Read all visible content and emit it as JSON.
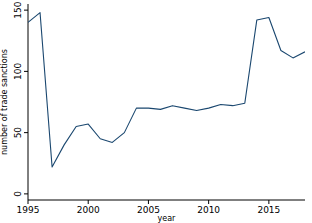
{
  "chart_data": {
    "type": "line",
    "x_label": "year",
    "y_label": "number of trade sanctions",
    "x": [
      1995,
      1996,
      1997,
      1998,
      1999,
      2000,
      2001,
      2002,
      2003,
      2004,
      2005,
      2006,
      2007,
      2008,
      2009,
      2010,
      2011,
      2012,
      2013,
      2014,
      2015,
      2016,
      2017,
      2018
    ],
    "series": [
      {
        "name": "number of trade sanctions",
        "color": "#1a476f",
        "values": [
          140,
          148,
          22,
          40,
          55,
          57,
          45,
          42,
          50,
          70,
          70,
          69,
          72,
          70,
          68,
          70,
          73,
          72,
          74,
          142,
          144,
          117,
          111,
          116
        ]
      }
    ],
    "xlim": [
      1995,
      2018
    ],
    "xticks": [
      1995,
      2000,
      2005,
      2010,
      2015
    ],
    "ylim": [
      -5,
      155
    ],
    "yticks": [
      0,
      50,
      100,
      150
    ],
    "grid": false
  }
}
